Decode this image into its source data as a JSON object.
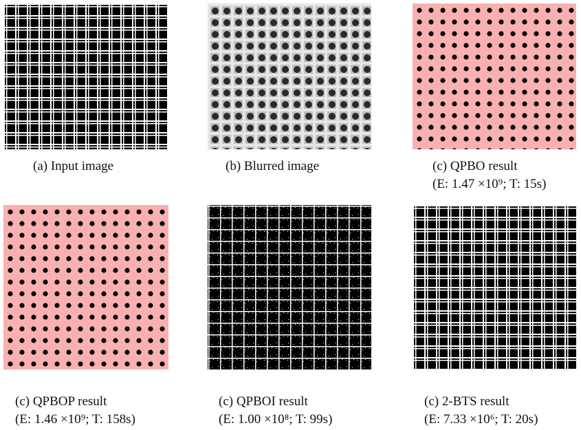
{
  "panels": [
    {
      "caption": "(a) Input image"
    },
    {
      "caption": "(b) Blurred image"
    },
    {
      "caption": "(c) QPBO result",
      "detail": "(E: 1.47 ×10⁹; T: 15s)"
    },
    {
      "caption": "(c) QPBOP result",
      "detail": "(E: 1.46 ×10⁹; T: 158s)"
    },
    {
      "caption": "(c) QPBOI result",
      "detail": "(E: 1.00 ×10⁸; T: 99s)"
    },
    {
      "caption": "(c) 2-BTS result",
      "detail": "(E: 7.33 ×10⁶; T: 20s)"
    }
  ]
}
